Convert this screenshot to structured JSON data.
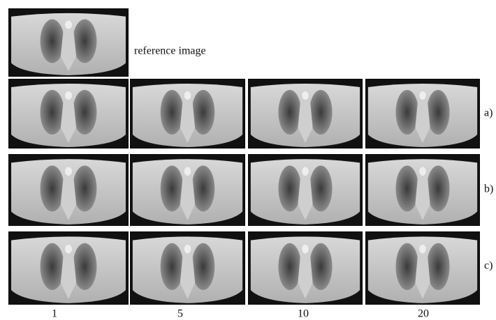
{
  "figure": {
    "reference_label": "reference image",
    "row_labels": [
      "a)",
      "b)",
      "c)"
    ],
    "column_labels": [
      "1",
      "5",
      "10",
      "20"
    ]
  }
}
